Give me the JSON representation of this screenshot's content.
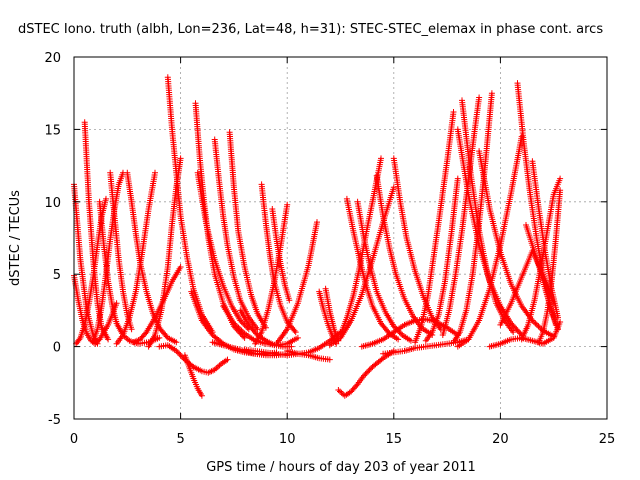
{
  "chart_data": {
    "type": "scatter",
    "title": "dSTEC Iono. truth (albh, Lon=236, Lat=48, h=31): STEC-STEC_elemax in phase cont. arcs",
    "xlabel": "GPS time / hours of day 203 of year 2011",
    "ylabel": "dSTEC  / TECUs",
    "xlim": [
      0,
      25
    ],
    "ylim": [
      -5,
      20
    ],
    "xticks": [
      0,
      5,
      10,
      15,
      20,
      25
    ],
    "yticks": [
      -5,
      0,
      5,
      10,
      15,
      20
    ],
    "grid": true,
    "marker": "+",
    "marker_color": "#ff0000",
    "series": [
      {
        "x": [
          0.0,
          0.3,
          0.6,
          0.9,
          1.1
        ],
        "y": [
          11.2,
          6,
          2.5,
          0.8,
          0.2
        ]
      },
      {
        "x": [
          0.0,
          0.2,
          0.4,
          0.6,
          0.8,
          1.0,
          1.2,
          1.6,
          2.0
        ],
        "y": [
          4.9,
          3.2,
          1.8,
          0.9,
          0.4,
          0.2,
          0.5,
          1.5,
          3
        ]
      },
      {
        "x": [
          0.1,
          0.3,
          0.5,
          0.7,
          0.9,
          1.1,
          1.3,
          1.5
        ],
        "y": [
          0.2,
          0.6,
          1.5,
          3,
          4.8,
          7,
          9,
          10.2
        ]
      },
      {
        "x": [
          0.5,
          0.7,
          0.9,
          1.1,
          1.3,
          1.6
        ],
        "y": [
          15.5,
          10,
          6,
          3,
          1.3,
          0.5
        ]
      },
      {
        "x": [
          0.9,
          1.1,
          1.3,
          1.5,
          1.7,
          1.9,
          2.1,
          2.3
        ],
        "y": [
          0.4,
          1.2,
          2.8,
          5,
          7.4,
          9.5,
          11.2,
          12
        ]
      },
      {
        "x": [
          1.2,
          1.4,
          1.6,
          1.8,
          2.0,
          2.3,
          2.6,
          3.0,
          3.5,
          4.0
        ],
        "y": [
          10,
          7,
          4.5,
          2.8,
          1.6,
          0.8,
          0.4,
          0.2,
          0.3,
          0.6
        ]
      },
      {
        "x": [
          1.7,
          1.9,
          2.1,
          2.3,
          2.5,
          2.7
        ],
        "y": [
          12,
          9,
          6,
          3.8,
          2.2,
          1.2
        ]
      },
      {
        "x": [
          2.0,
          2.3,
          2.6,
          2.9,
          3.2,
          3.5,
          3.8
        ],
        "y": [
          0.2,
          0.8,
          2,
          3.8,
          6.5,
          9.5,
          12
        ]
      },
      {
        "x": [
          2.5,
          2.7,
          2.9,
          3.1,
          3.4,
          3.7,
          4.0,
          4.4,
          4.8
        ],
        "y": [
          12,
          10,
          7.8,
          5.8,
          3.8,
          2.3,
          1.3,
          0.6,
          0.3
        ]
      },
      {
        "x": [
          2.8,
          3.1,
          3.4,
          3.8,
          4.2,
          4.6,
          5.0
        ],
        "y": [
          0.3,
          0.5,
          1,
          2,
          3.2,
          4.5,
          5.5
        ]
      },
      {
        "x": [
          4.4,
          4.6,
          4.8,
          5.0,
          5.3,
          5.6,
          6.0,
          6.5
        ],
        "y": [
          18.6,
          15,
          12,
          9,
          6.2,
          4,
          2.2,
          1
        ]
      },
      {
        "x": [
          3.5,
          3.8,
          4.1,
          4.4,
          4.6,
          4.8,
          5.0
        ],
        "y": [
          0,
          0.8,
          2.5,
          5.5,
          8.5,
          11,
          13
        ]
      },
      {
        "x": [
          4.0,
          4.4,
          4.8,
          5.2,
          5.6,
          6.0,
          6.3,
          6.6,
          6.9,
          7.2
        ],
        "y": [
          0,
          0.1,
          -0.3,
          -0.9,
          -1.4,
          -1.7,
          -1.8,
          -1.6,
          -1.2,
          -0.9
        ]
      },
      {
        "x": [
          5.2,
          5.4,
          5.6,
          5.8,
          6.0
        ],
        "y": [
          -0.6,
          -1.4,
          -2.2,
          -2.9,
          -3.4
        ]
      },
      {
        "x": [
          5.7,
          5.9,
          6.1,
          6.3,
          6.6,
          7.0,
          7.5,
          8.0
        ],
        "y": [
          16.8,
          13,
          10,
          7.5,
          5,
          3,
          1.4,
          0.6
        ]
      },
      {
        "x": [
          5.8,
          6.2,
          6.6,
          7.0,
          7.4,
          7.8,
          8.2
        ],
        "y": [
          12,
          8.5,
          6,
          4.2,
          2.8,
          1.8,
          1.2
        ]
      },
      {
        "x": [
          6.6,
          6.8,
          7.0,
          7.2,
          7.5,
          7.8,
          8.2,
          8.6
        ],
        "y": [
          14.3,
          11.5,
          9,
          7,
          4.8,
          3.2,
          2,
          1.2
        ]
      },
      {
        "x": [
          7.3,
          7.5,
          7.7,
          8.0,
          8.3,
          8.6,
          9.0
        ],
        "y": [
          14.8,
          11,
          8,
          5.5,
          3.6,
          2.3,
          1.3
        ]
      },
      {
        "x": [
          5.5,
          6.0,
          6.5,
          7.0,
          7.5,
          8.0,
          8.5,
          9.0,
          9.5
        ],
        "y": [
          3.8,
          1.8,
          0.8,
          0.2,
          -0.2,
          -0.4,
          -0.5,
          -0.5,
          -0.4
        ]
      },
      {
        "x": [
          6.5,
          7.0,
          7.5,
          8.0,
          8.5,
          9.0,
          9.5,
          10.0
        ],
        "y": [
          0.3,
          0.1,
          -0.1,
          -0.3,
          -0.5,
          -0.6,
          -0.6,
          -0.5
        ]
      },
      {
        "x": [
          7.8,
          8.2,
          8.6,
          9.0,
          9.4,
          9.8,
          10.2
        ],
        "y": [
          2.5,
          1.5,
          0.8,
          0.4,
          0.1,
          0,
          0
        ]
      },
      {
        "x": [
          8.8,
          9.0,
          9.2,
          9.4,
          9.7,
          10.0,
          10.4
        ],
        "y": [
          11.2,
          8.5,
          6.2,
          4.4,
          2.8,
          1.7,
          1
        ]
      },
      {
        "x": [
          9.3,
          9.5,
          9.7,
          9.9,
          10.1
        ],
        "y": [
          9.5,
          7.4,
          5.6,
          4.2,
          3.2
        ]
      },
      {
        "x": [
          7.0,
          7.5,
          8.0,
          8.5,
          9.0,
          9.5,
          10.0,
          10.5
        ],
        "y": [
          2.8,
          1.6,
          0.9,
          0.4,
          0.2,
          0.1,
          0.2,
          0.6
        ]
      },
      {
        "x": [
          8.5,
          8.8,
          9.1,
          9.4,
          9.7,
          10.0
        ],
        "y": [
          0.2,
          1,
          2.5,
          4.5,
          7,
          9.8
        ]
      },
      {
        "x": [
          9.5,
          10.0,
          10.5,
          11.0,
          11.4
        ],
        "y": [
          0.2,
          1.2,
          3,
          5.6,
          8.6
        ]
      },
      {
        "x": [
          8.0,
          9.0,
          10.0,
          11.0,
          11.5,
          12.0,
          12.5
        ],
        "y": [
          -0.2,
          -0.4,
          -0.6,
          -0.4,
          -0.1,
          0.4,
          1
        ]
      },
      {
        "x": [
          10.0,
          10.5,
          11.0,
          11.5,
          12.0
        ],
        "y": [
          -0.3,
          -0.5,
          -0.6,
          -0.8,
          -0.9
        ]
      },
      {
        "x": [
          11.5,
          11.7,
          11.9,
          12.1,
          12.3
        ],
        "y": [
          3.8,
          2.6,
          1.6,
          0.8,
          0.2
        ]
      },
      {
        "x": [
          11.8,
          12.0,
          12.2,
          12.4
        ],
        "y": [
          4,
          2.4,
          1.2,
          0.4
        ]
      },
      {
        "x": [
          12.4,
          12.7,
          13.0,
          13.3,
          13.6,
          14.0,
          14.5,
          15.0
        ],
        "y": [
          -3,
          -3.4,
          -3.1,
          -2.6,
          -2,
          -1.4,
          -0.8,
          -0.3
        ]
      },
      {
        "x": [
          12.5,
          12.8,
          13.1,
          13.4,
          13.7,
          14.0,
          14.4
        ],
        "y": [
          0.8,
          2,
          3.5,
          5.5,
          7.8,
          10,
          13
        ]
      },
      {
        "x": [
          12.8,
          13.1,
          13.4,
          13.7,
          14.0,
          14.4,
          14.8,
          15.2
        ],
        "y": [
          10.2,
          8,
          6,
          4.2,
          2.8,
          1.6,
          0.9,
          0.5
        ]
      },
      {
        "x": [
          12.0,
          12.5,
          13.0,
          13.5,
          14.0,
          14.5,
          15.0
        ],
        "y": [
          0.1,
          0.6,
          1.8,
          3.6,
          6,
          8.6,
          11
        ]
      },
      {
        "x": [
          13.3,
          13.6,
          13.9,
          14.2,
          14.6,
          15.0,
          15.4,
          15.8
        ],
        "y": [
          10,
          7.5,
          5.5,
          3.8,
          2.4,
          1.4,
          0.8,
          0.4
        ]
      },
      {
        "x": [
          14.2,
          14.5,
          14.8,
          15.1,
          15.5,
          15.9,
          16.3,
          16.8
        ],
        "y": [
          11.8,
          9,
          6.8,
          5,
          3.3,
          2.1,
          1.3,
          0.8
        ]
      },
      {
        "x": [
          15.0,
          15.3,
          15.6,
          16.0,
          16.4,
          16.8,
          17.2
        ],
        "y": [
          13,
          10,
          7.5,
          5.2,
          3.4,
          2,
          1.2
        ]
      },
      {
        "x": [
          13.5,
          14.0,
          14.5,
          15.0,
          15.5,
          16.0,
          16.5,
          17.0,
          17.5,
          18.0
        ],
        "y": [
          0,
          0.2,
          0.5,
          1,
          1.5,
          1.8,
          1.9,
          1.7,
          1.3,
          0.8
        ]
      },
      {
        "x": [
          16.0,
          16.3,
          16.6,
          16.9,
          17.2,
          17.5,
          17.8
        ],
        "y": [
          0.3,
          1.5,
          3.5,
          6.5,
          9.6,
          12.8,
          16.2
        ]
      },
      {
        "x": [
          16.5,
          16.8,
          17.1,
          17.4,
          17.7,
          18.0
        ],
        "y": [
          0.4,
          1,
          2.2,
          4.5,
          7.8,
          11.6
        ]
      },
      {
        "x": [
          14.5,
          15.0,
          15.5,
          16.0,
          16.5,
          17.0,
          17.5,
          18.0,
          18.5
        ],
        "y": [
          -0.5,
          -0.4,
          -0.3,
          -0.1,
          0,
          0.1,
          0.2,
          0.3,
          0.5
        ]
      },
      {
        "x": [
          17.3,
          17.6,
          17.9,
          18.2,
          18.5,
          18.8,
          19.0
        ],
        "y": [
          0.8,
          2.5,
          5,
          8,
          11.5,
          15,
          17.2
        ]
      },
      {
        "x": [
          17.8,
          18.1,
          18.4,
          18.7,
          19.0,
          19.3,
          19.6
        ],
        "y": [
          0.3,
          1,
          2.5,
          5,
          8.5,
          12.8,
          17.5
        ]
      },
      {
        "x": [
          18.2,
          18.6,
          19.0,
          19.4,
          19.8,
          20.2,
          20.6
        ],
        "y": [
          17,
          12,
          8,
          5,
          3,
          1.8,
          1
        ]
      },
      {
        "x": [
          18.0,
          18.5,
          19.0,
          19.5,
          20.0,
          20.5,
          21.0
        ],
        "y": [
          15,
          10.5,
          7,
          4.5,
          2.8,
          1.6,
          0.8
        ]
      },
      {
        "x": [
          19.0,
          19.5,
          20.0,
          20.5,
          21.0,
          21.5,
          22.0,
          22.5
        ],
        "y": [
          13.5,
          9.5,
          6.5,
          4.3,
          2.8,
          1.8,
          1.1,
          0.7
        ]
      },
      {
        "x": [
          18.0,
          18.5,
          19.0,
          19.5,
          20.0,
          20.5,
          21.0
        ],
        "y": [
          0,
          0.5,
          1.8,
          4,
          7,
          10.6,
          14.5
        ]
      },
      {
        "x": [
          20.8,
          21.1,
          21.4,
          21.7,
          22.0,
          22.3,
          22.6
        ],
        "y": [
          18.2,
          14,
          10.5,
          7.5,
          5,
          3,
          1.5
        ]
      },
      {
        "x": [
          21.0,
          21.3,
          21.6,
          21.9,
          22.2,
          22.5,
          22.8
        ],
        "y": [
          0.5,
          1.5,
          3.2,
          5.5,
          8,
          10.5,
          11.6
        ]
      },
      {
        "x": [
          21.5,
          21.8,
          22.1,
          22.4,
          22.7
        ],
        "y": [
          12.8,
          9.5,
          6.5,
          4,
          2
        ]
      },
      {
        "x": [
          21.8,
          22.0,
          22.2,
          22.4,
          22.6,
          22.8
        ],
        "y": [
          0.3,
          1,
          2.4,
          4.5,
          7.4,
          10.8
        ]
      },
      {
        "x": [
          19.5,
          20.0,
          20.5,
          21.0,
          21.5,
          22.0,
          22.5,
          22.8
        ],
        "y": [
          0,
          0.2,
          0.5,
          0.6,
          0.4,
          0.2,
          0.6,
          1.7
        ]
      },
      {
        "x": [
          20.0,
          20.5,
          21.0,
          21.5,
          22.0,
          22.5
        ],
        "y": [
          1.5,
          3,
          4.8,
          6.6,
          5,
          3
        ]
      },
      {
        "x": [
          21.2,
          21.5,
          21.8,
          22.1,
          22.4,
          22.7
        ],
        "y": [
          8.4,
          7,
          5.6,
          4,
          2.5,
          1.2
        ]
      }
    ]
  }
}
